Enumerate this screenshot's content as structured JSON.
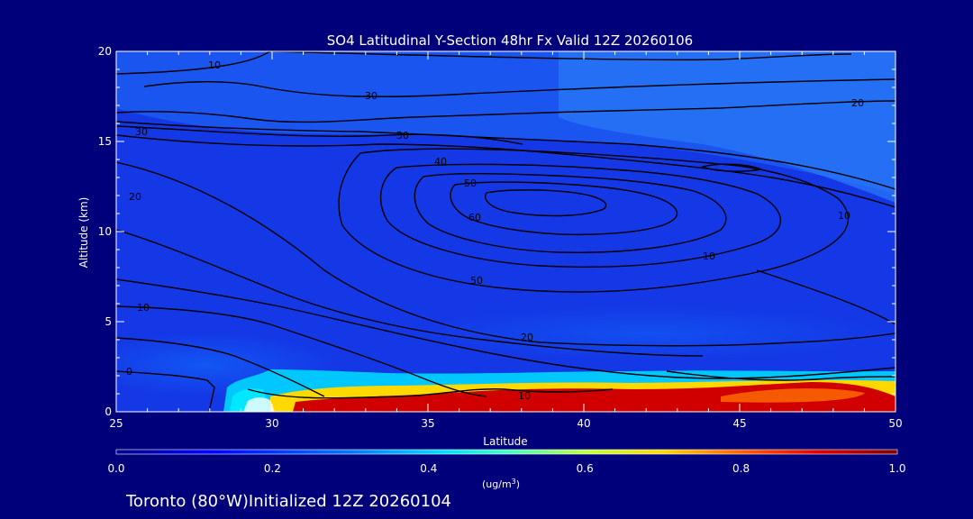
{
  "chart_data": {
    "type": "heatmap",
    "title": "SO4 Latitudinal Y-Section 48hr  Fx Valid 12Z 20260106",
    "xlabel": "Latitude",
    "ylabel": "Altitude (km)",
    "xlim": [
      25,
      50
    ],
    "ylim": [
      0,
      20
    ],
    "x_ticks": [
      "25",
      "30",
      "35",
      "40",
      "45",
      "50"
    ],
    "y_ticks": [
      "0",
      "5",
      "10",
      "15",
      "20"
    ],
    "colorbar": {
      "range": [
        0.0,
        1.0
      ],
      "ticks": [
        "0.0",
        "0.2",
        "0.4",
        "0.6",
        "0.8",
        "1.0"
      ],
      "unit_prefix": "(ug/m",
      "unit_sup": "3",
      "unit_suffix": ")"
    },
    "contour_labels": [
      "10",
      "30",
      "30",
      "30",
      "20",
      "40",
      "20",
      "50",
      "10",
      "60",
      "10",
      "50",
      "20",
      "10",
      "0",
      "10"
    ],
    "footer": "Toronto (80°W)Initialized 12Z 20260104"
  }
}
